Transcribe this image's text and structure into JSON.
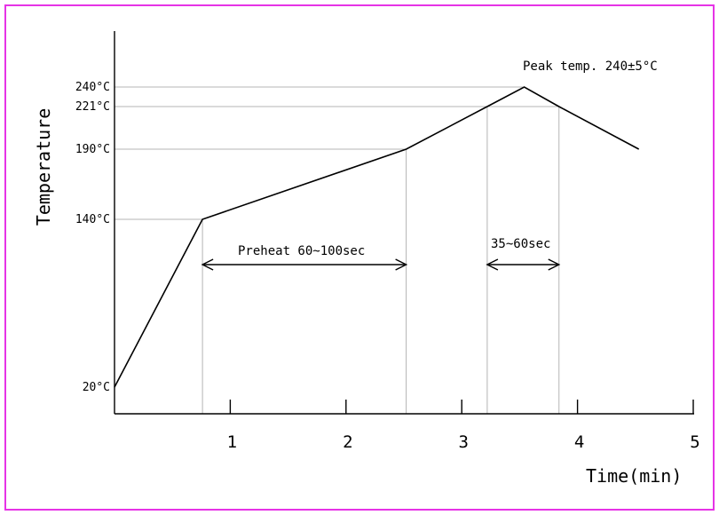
{
  "chart_data": {
    "type": "line",
    "title": "",
    "xlabel": "Time(min)",
    "ylabel": "Temperature",
    "xlim": [
      0,
      5
    ],
    "ylim": [
      20,
      240
    ],
    "x_ticks": [
      "1",
      "2",
      "3",
      "4",
      "5"
    ],
    "y_ticks": [
      "20°C",
      "140°C",
      "190°C",
      "221°C",
      "240°C"
    ],
    "series": [
      {
        "points": [
          {
            "x": 0,
            "y": 20
          },
          {
            "x": 0.76,
            "y": 140
          },
          {
            "x": 2.52,
            "y": 190
          },
          {
            "x": 3.22,
            "y": 221
          },
          {
            "x": 3.54,
            "y": 240
          },
          {
            "x": 3.84,
            "y": 221
          },
          {
            "x": 4.53,
            "y": 190
          }
        ]
      }
    ],
    "guides": {
      "vertical_at_x": [
        0.76,
        2.52,
        3.22,
        3.84
      ],
      "horizontal_at_y": [
        140,
        190,
        221,
        240
      ]
    },
    "annotations": {
      "peak": "Peak temp. 240±5°C",
      "preheat": {
        "label": "Preheat 60~100sec",
        "from": 0.76,
        "to": 2.52
      },
      "reflow": {
        "label": "35~60sec",
        "from": 3.22,
        "to": 3.84
      }
    },
    "grid": false,
    "colors": {
      "curve": "#000000",
      "guide": "#b4b4b4",
      "frame": "#e633e6"
    }
  }
}
